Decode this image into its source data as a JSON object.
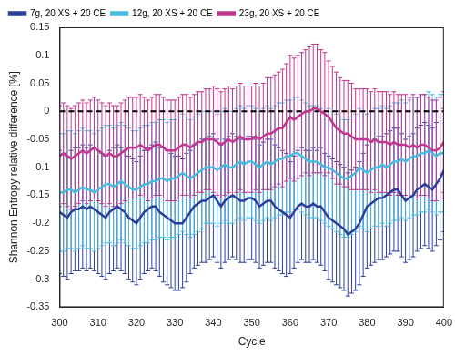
{
  "chart_data": {
    "type": "line",
    "x_label": "Cycle",
    "y_label": "Shannon Entropy relative difference [%]",
    "xlim": [
      300,
      400
    ],
    "xticks": [
      300,
      310,
      320,
      330,
      340,
      350,
      360,
      370,
      380,
      390,
      400
    ],
    "ylim": [
      -0.35,
      0.15
    ],
    "yticks": [
      -0.35,
      -0.3,
      -0.25,
      -0.2,
      -0.15,
      -0.1,
      -0.05,
      0,
      0.05,
      0.1,
      0.15
    ],
    "grid": false,
    "legend": "top-left",
    "reference_lines": [
      {
        "value": 0,
        "color": "#000000",
        "line_style": "dashed"
      }
    ],
    "x": [
      300,
      301,
      302,
      303,
      304,
      305,
      306,
      307,
      308,
      309,
      310,
      311,
      312,
      313,
      314,
      315,
      316,
      317,
      318,
      319,
      320,
      321,
      322,
      323,
      324,
      325,
      326,
      327,
      328,
      329,
      330,
      331,
      332,
      333,
      334,
      335,
      336,
      337,
      338,
      339,
      340,
      341,
      342,
      343,
      344,
      345,
      346,
      347,
      348,
      349,
      350,
      351,
      352,
      353,
      354,
      355,
      356,
      357,
      358,
      359,
      360,
      361,
      362,
      363,
      364,
      365,
      366,
      367,
      368,
      369,
      370,
      371,
      372,
      373,
      374,
      375,
      376,
      377,
      378,
      379,
      380,
      381,
      382,
      383,
      384,
      385,
      386,
      387,
      388,
      389,
      390,
      391,
      392,
      393,
      394,
      395,
      396,
      397,
      398,
      399,
      400
    ],
    "series": [
      {
        "name": "7g, 20 XS + 20 CE",
        "color": "#2b3f9a",
        "values": [
          -0.18,
          -0.185,
          -0.19,
          -0.18,
          -0.175,
          -0.175,
          -0.17,
          -0.175,
          -0.17,
          -0.175,
          -0.18,
          -0.185,
          -0.19,
          -0.18,
          -0.175,
          -0.17,
          -0.175,
          -0.18,
          -0.19,
          -0.195,
          -0.2,
          -0.19,
          -0.18,
          -0.175,
          -0.17,
          -0.17,
          -0.18,
          -0.185,
          -0.19,
          -0.195,
          -0.2,
          -0.2,
          -0.2,
          -0.19,
          -0.18,
          -0.17,
          -0.165,
          -0.16,
          -0.16,
          -0.155,
          -0.15,
          -0.16,
          -0.17,
          -0.16,
          -0.155,
          -0.15,
          -0.155,
          -0.16,
          -0.16,
          -0.155,
          -0.155,
          -0.16,
          -0.17,
          -0.165,
          -0.16,
          -0.16,
          -0.17,
          -0.175,
          -0.18,
          -0.185,
          -0.19,
          -0.18,
          -0.17,
          -0.165,
          -0.17,
          -0.17,
          -0.165,
          -0.17,
          -0.17,
          -0.18,
          -0.19,
          -0.195,
          -0.2,
          -0.205,
          -0.21,
          -0.22,
          -0.215,
          -0.21,
          -0.2,
          -0.185,
          -0.17,
          -0.165,
          -0.16,
          -0.155,
          -0.155,
          -0.15,
          -0.145,
          -0.14,
          -0.14,
          -0.15,
          -0.16,
          -0.155,
          -0.15,
          -0.14,
          -0.135,
          -0.13,
          -0.135,
          -0.14,
          -0.13,
          -0.12,
          -0.105
        ],
        "errors": [
          0.11,
          0.11,
          0.11,
          0.11,
          0.11,
          0.11,
          0.11,
          0.11,
          0.11,
          0.11,
          0.11,
          0.11,
          0.11,
          0.11,
          0.11,
          0.11,
          0.11,
          0.11,
          0.11,
          0.11,
          0.11,
          0.11,
          0.11,
          0.11,
          0.11,
          0.115,
          0.115,
          0.12,
          0.12,
          0.12,
          0.12,
          0.12,
          0.115,
          0.115,
          0.11,
          0.11,
          0.11,
          0.11,
          0.11,
          0.11,
          0.11,
          0.11,
          0.11,
          0.11,
          0.11,
          0.11,
          0.11,
          0.11,
          0.11,
          0.11,
          0.11,
          0.11,
          0.11,
          0.11,
          0.11,
          0.11,
          0.11,
          0.11,
          0.11,
          0.11,
          0.1,
          0.1,
          0.1,
          0.1,
          0.1,
          0.1,
          0.1,
          0.1,
          0.105,
          0.105,
          0.11,
          0.11,
          0.11,
          0.11,
          0.11,
          0.11,
          0.11,
          0.11,
          0.11,
          0.11,
          0.11,
          0.11,
          0.11,
          0.11,
          0.11,
          0.11,
          0.11,
          0.11,
          0.11,
          0.11,
          0.11,
          0.11,
          0.11,
          0.11,
          0.11,
          0.11,
          0.11,
          0.11,
          0.11,
          0.11,
          0.11
        ]
      },
      {
        "name": "12g, 20 XS + 20 CE",
        "color": "#45bde0",
        "values": [
          -0.145,
          -0.145,
          -0.14,
          -0.14,
          -0.145,
          -0.14,
          -0.135,
          -0.14,
          -0.14,
          -0.145,
          -0.14,
          -0.135,
          -0.13,
          -0.13,
          -0.135,
          -0.13,
          -0.125,
          -0.13,
          -0.135,
          -0.14,
          -0.14,
          -0.135,
          -0.13,
          -0.13,
          -0.125,
          -0.125,
          -0.12,
          -0.12,
          -0.125,
          -0.12,
          -0.12,
          -0.115,
          -0.11,
          -0.115,
          -0.12,
          -0.115,
          -0.11,
          -0.105,
          -0.1,
          -0.1,
          -0.1,
          -0.105,
          -0.1,
          -0.095,
          -0.1,
          -0.1,
          -0.095,
          -0.09,
          -0.095,
          -0.09,
          -0.09,
          -0.095,
          -0.1,
          -0.095,
          -0.09,
          -0.095,
          -0.09,
          -0.085,
          -0.085,
          -0.08,
          -0.08,
          -0.075,
          -0.075,
          -0.08,
          -0.085,
          -0.09,
          -0.09,
          -0.09,
          -0.095,
          -0.1,
          -0.1,
          -0.105,
          -0.11,
          -0.115,
          -0.12,
          -0.12,
          -0.115,
          -0.11,
          -0.1,
          -0.105,
          -0.11,
          -0.105,
          -0.1,
          -0.1,
          -0.095,
          -0.1,
          -0.095,
          -0.09,
          -0.09,
          -0.085,
          -0.09,
          -0.085,
          -0.08,
          -0.08,
          -0.075,
          -0.075,
          -0.07,
          -0.075,
          -0.08,
          -0.075,
          -0.075
        ],
        "errors": [
          0.105,
          0.105,
          0.105,
          0.105,
          0.105,
          0.105,
          0.105,
          0.105,
          0.105,
          0.105,
          0.105,
          0.105,
          0.105,
          0.105,
          0.105,
          0.105,
          0.105,
          0.105,
          0.105,
          0.105,
          0.105,
          0.105,
          0.105,
          0.105,
          0.105,
          0.105,
          0.105,
          0.105,
          0.105,
          0.105,
          0.105,
          0.105,
          0.105,
          0.105,
          0.105,
          0.105,
          0.105,
          0.105,
          0.1,
          0.1,
          0.1,
          0.1,
          0.1,
          0.1,
          0.1,
          0.1,
          0.1,
          0.1,
          0.1,
          0.1,
          0.1,
          0.1,
          0.1,
          0.1,
          0.1,
          0.1,
          0.1,
          0.1,
          0.1,
          0.1,
          0.1,
          0.1,
          0.1,
          0.1,
          0.1,
          0.1,
          0.1,
          0.1,
          0.1,
          0.1,
          0.105,
          0.105,
          0.105,
          0.105,
          0.105,
          0.105,
          0.105,
          0.105,
          0.105,
          0.105,
          0.105,
          0.105,
          0.105,
          0.105,
          0.105,
          0.105,
          0.105,
          0.105,
          0.105,
          0.105,
          0.105,
          0.105,
          0.105,
          0.105,
          0.105,
          0.105,
          0.105,
          0.105,
          0.105,
          0.105,
          0.105
        ]
      },
      {
        "name": "23g, 20 XS + 20 CE",
        "color": "#c1368e",
        "values": [
          -0.08,
          -0.075,
          -0.08,
          -0.085,
          -0.08,
          -0.075,
          -0.07,
          -0.075,
          -0.07,
          -0.065,
          -0.07,
          -0.075,
          -0.08,
          -0.075,
          -0.08,
          -0.08,
          -0.075,
          -0.07,
          -0.065,
          -0.065,
          -0.065,
          -0.06,
          -0.065,
          -0.07,
          -0.065,
          -0.06,
          -0.06,
          -0.065,
          -0.07,
          -0.07,
          -0.07,
          -0.065,
          -0.06,
          -0.06,
          -0.065,
          -0.06,
          -0.055,
          -0.055,
          -0.05,
          -0.05,
          -0.05,
          -0.055,
          -0.06,
          -0.055,
          -0.05,
          -0.055,
          -0.05,
          -0.045,
          -0.05,
          -0.05,
          -0.05,
          -0.045,
          -0.05,
          -0.045,
          -0.04,
          -0.04,
          -0.035,
          -0.03,
          -0.03,
          -0.02,
          -0.01,
          -0.015,
          -0.01,
          -0.005,
          0,
          0,
          0.005,
          0.005,
          0,
          -0.005,
          -0.01,
          -0.02,
          -0.03,
          -0.035,
          -0.04,
          -0.04,
          -0.045,
          -0.05,
          -0.05,
          -0.05,
          -0.05,
          -0.055,
          -0.05,
          -0.055,
          -0.055,
          -0.055,
          -0.06,
          -0.055,
          -0.06,
          -0.06,
          -0.06,
          -0.065,
          -0.06,
          -0.065,
          -0.06,
          -0.06,
          -0.065,
          -0.07,
          -0.07,
          -0.065,
          -0.055
        ],
        "errors": [
          0.09,
          0.09,
          0.09,
          0.09,
          0.09,
          0.09,
          0.09,
          0.09,
          0.09,
          0.09,
          0.09,
          0.09,
          0.09,
          0.09,
          0.09,
          0.09,
          0.09,
          0.09,
          0.09,
          0.09,
          0.09,
          0.09,
          0.09,
          0.09,
          0.09,
          0.09,
          0.09,
          0.09,
          0.09,
          0.09,
          0.09,
          0.09,
          0.09,
          0.09,
          0.09,
          0.09,
          0.09,
          0.09,
          0.09,
          0.09,
          0.095,
          0.095,
          0.095,
          0.095,
          0.095,
          0.095,
          0.095,
          0.095,
          0.095,
          0.095,
          0.095,
          0.095,
          0.095,
          0.095,
          0.1,
          0.1,
          0.1,
          0.1,
          0.105,
          0.105,
          0.11,
          0.11,
          0.11,
          0.11,
          0.11,
          0.115,
          0.115,
          0.115,
          0.11,
          0.11,
          0.1,
          0.1,
          0.1,
          0.095,
          0.095,
          0.095,
          0.095,
          0.09,
          0.09,
          0.09,
          0.09,
          0.09,
          0.09,
          0.09,
          0.09,
          0.09,
          0.09,
          0.09,
          0.09,
          0.09,
          0.09,
          0.09,
          0.09,
          0.09,
          0.09,
          0.09,
          0.09,
          0.09,
          0.09,
          0.09,
          0.09
        ]
      }
    ]
  }
}
